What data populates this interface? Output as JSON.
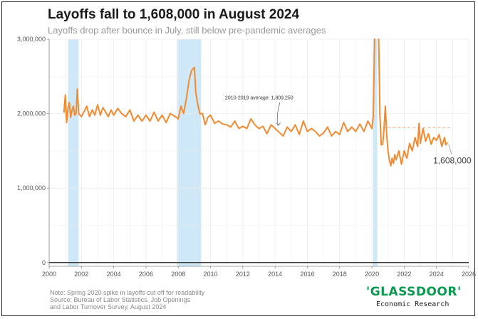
{
  "header": {
    "title": "Layoffs fall to 1,608,000 in August 2024",
    "subtitle": "Layoffs drop after bounce in July, still below pre-pandemic averages"
  },
  "footer": {
    "note": "Note: Spring 2020 spike in layoffs cut off for readability",
    "source_line1": "Source: Bureau of Labor Statistics, Job Openings",
    "source_line2": "and Labor Turnover Survey, August 2024"
  },
  "branding": {
    "logo_text": "'GLASSDOOR'",
    "logo_subtext": "Economic Research",
    "logo_color": "#0a9a4f"
  },
  "colors": {
    "line": "#f28a30",
    "recession": "#cfe8f7",
    "average_line": "#f4b48a",
    "zero_line": "#222222",
    "grid": "#ebebeb"
  },
  "chart_data": {
    "type": "line",
    "title": "Layoffs fall to 1,608,000 in August 2024",
    "subtitle": "Layoffs drop after bounce in July, still below pre-pandemic averages",
    "xlabel": "",
    "ylabel": "",
    "xlim": [
      2000,
      2026
    ],
    "ylim": [
      -50000,
      3000000
    ],
    "x_ticks": [
      2000,
      2002,
      2004,
      2006,
      2008,
      2010,
      2012,
      2014,
      2016,
      2018,
      2020,
      2022,
      2024,
      2026
    ],
    "y_ticks": [
      0,
      1000000,
      2000000,
      3000000
    ],
    "y_tick_labels": [
      "0",
      "1,000,000",
      "2,000,000",
      "3,000,000"
    ],
    "grid": true,
    "recession_periods": [
      [
        2001.17,
        2001.83
      ],
      [
        2007.92,
        2009.42
      ],
      [
        2020.08,
        2020.33
      ]
    ],
    "average": {
      "label": "2010-2019 average: 1,809,250",
      "value": 1809250,
      "x_start": 2020.67,
      "x_end": 2025.0
    },
    "end_label": "1,608,000",
    "clipped_spike_x": [
      2020.17,
      2020.42
    ],
    "series": [
      {
        "x": [
          2000.92,
          2001.0,
          2001.08,
          2001.17,
          2001.25,
          2001.33,
          2001.42,
          2001.5,
          2001.58,
          2001.67,
          2001.75,
          2001.83,
          2002.0,
          2002.17,
          2002.33,
          2002.5,
          2002.67,
          2002.83,
          2003.0,
          2003.17,
          2003.33,
          2003.5,
          2003.67,
          2003.83,
          2004.0,
          2004.25,
          2004.5,
          2004.75,
          2005.0,
          2005.25,
          2005.5,
          2005.75,
          2006.0,
          2006.25,
          2006.5,
          2006.75,
          2007.0,
          2007.25,
          2007.5,
          2007.75,
          2008.0,
          2008.17,
          2008.33,
          2008.5,
          2008.67,
          2008.83,
          2009.0,
          2009.08,
          2009.17,
          2009.33,
          2009.5,
          2009.67,
          2009.83,
          2010.0,
          2010.25,
          2010.5,
          2010.75,
          2011.0,
          2011.25,
          2011.5,
          2011.75,
          2012.0,
          2012.25,
          2012.5,
          2012.75,
          2013.0,
          2013.25,
          2013.5,
          2013.75,
          2014.0,
          2014.25,
          2014.5,
          2014.75,
          2015.0,
          2015.25,
          2015.5,
          2015.75,
          2016.0,
          2016.25,
          2016.5,
          2016.75,
          2017.0,
          2017.25,
          2017.5,
          2017.75,
          2018.0,
          2018.25,
          2018.5,
          2018.75,
          2019.0,
          2019.25,
          2019.5,
          2019.75,
          2020.0,
          2020.08,
          2020.5,
          2020.58,
          2020.67,
          2020.75,
          2020.83,
          2020.92,
          2021.0,
          2021.08,
          2021.17,
          2021.25,
          2021.33,
          2021.42,
          2021.5,
          2021.67,
          2021.83,
          2022.0,
          2022.17,
          2022.33,
          2022.5,
          2022.67,
          2022.83,
          2022.92,
          2023.0,
          2023.17,
          2023.33,
          2023.5,
          2023.67,
          2023.83,
          2024.0,
          2024.17,
          2024.33,
          2024.5,
          2024.58,
          2024.67
        ],
        "y": [
          2020000,
          2250000,
          1880000,
          2080000,
          2150000,
          1950000,
          2050000,
          2100000,
          1980000,
          2000000,
          2330000,
          2000000,
          1960000,
          2030000,
          2100000,
          1960000,
          2050000,
          1980000,
          2120000,
          1980000,
          2080000,
          2020000,
          1960000,
          2050000,
          1980000,
          2070000,
          2000000,
          1960000,
          2050000,
          1900000,
          1980000,
          1900000,
          1980000,
          1900000,
          2020000,
          1900000,
          1980000,
          1880000,
          2000000,
          1970000,
          1930000,
          2100000,
          2000000,
          2200000,
          2450000,
          2580000,
          2620000,
          2300000,
          2170000,
          2000000,
          2000000,
          1850000,
          1950000,
          1980000,
          1870000,
          1900000,
          1860000,
          1850000,
          1820000,
          1900000,
          1800000,
          1830000,
          1800000,
          1930000,
          1850000,
          1800000,
          1830000,
          1730000,
          1850000,
          1800000,
          1750000,
          1700000,
          1820000,
          1760000,
          1850000,
          1720000,
          1900000,
          1760000,
          1800000,
          1760000,
          1700000,
          1740000,
          1820000,
          1700000,
          1760000,
          1720000,
          1880000,
          1760000,
          1820000,
          1760000,
          1860000,
          1760000,
          1900000,
          1800000,
          1950000,
          1960000,
          1580000,
          1590000,
          1800000,
          2100000,
          1700000,
          1500000,
          1380000,
          1300000,
          1400000,
          1330000,
          1450000,
          1380000,
          1500000,
          1320000,
          1500000,
          1400000,
          1600000,
          1500000,
          1680000,
          1560000,
          1870000,
          1600000,
          1800000,
          1630000,
          1730000,
          1590000,
          1680000,
          1640000,
          1720000,
          1560000,
          1680000,
          1580000,
          1608000
        ]
      }
    ]
  }
}
